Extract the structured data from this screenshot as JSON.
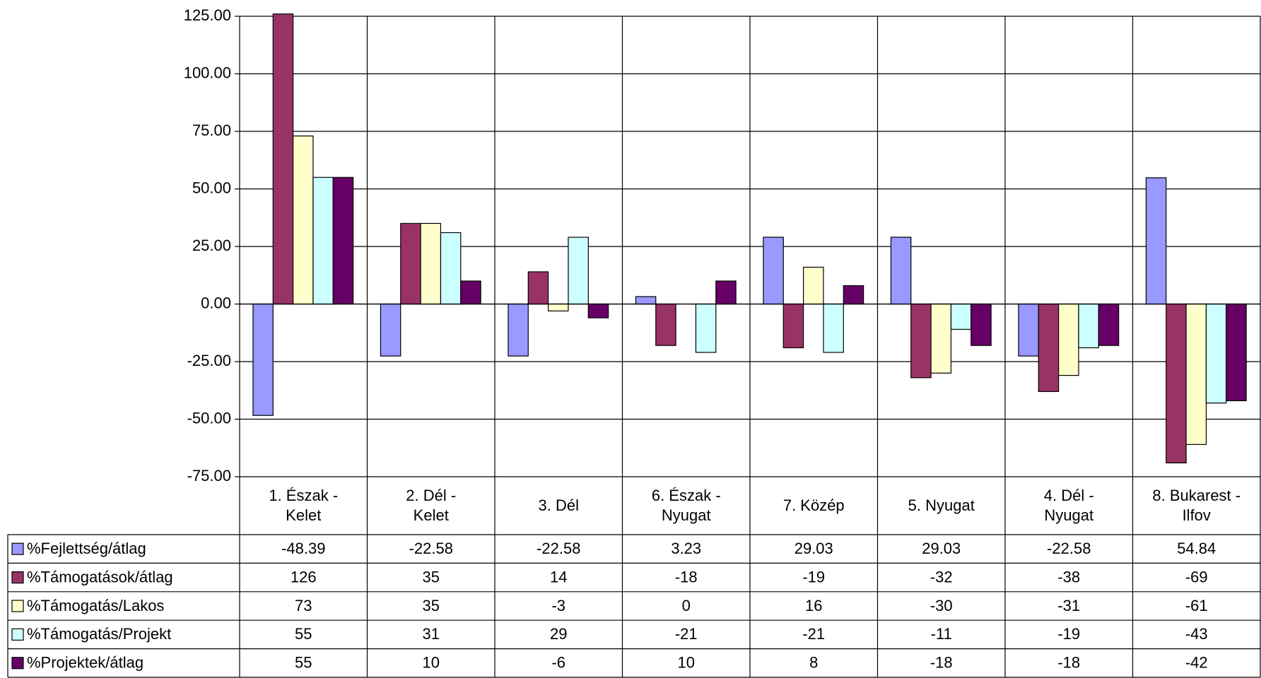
{
  "chart_data": {
    "type": "bar",
    "categories": [
      "1. Észak -\nKelet",
      "2. Dél -\nKelet",
      "3. Dél",
      "6. Észak -\nNyugat",
      "7. Közép",
      "5. Nyugat",
      "4. Dél -\nNyugat",
      "8. Bukarest -\nIlfov"
    ],
    "series": [
      {
        "name": "%Fejlettség/átlag",
        "color": "#9999ff",
        "values": [
          -48.39,
          -22.58,
          -22.58,
          3.23,
          29.03,
          29.03,
          -22.58,
          54.84
        ]
      },
      {
        "name": "%Támogatások/átlag",
        "color": "#993366",
        "values": [
          126,
          35,
          14,
          -18,
          -19,
          -32,
          -38,
          -69
        ]
      },
      {
        "name": "%Támogatás/Lakos",
        "color": "#ffffcc",
        "values": [
          73,
          35,
          -3,
          0,
          16,
          -30,
          -31,
          -61
        ]
      },
      {
        "name": "%Támogatás/Projekt",
        "color": "#ccffff",
        "values": [
          55,
          31,
          29,
          -21,
          -21,
          -11,
          -19,
          -43
        ]
      },
      {
        "name": "%Projektek/átlag",
        "color": "#660066",
        "values": [
          55,
          10,
          -6,
          10,
          8,
          -18,
          -18,
          -42
        ]
      }
    ],
    "ylim": [
      -75,
      125
    ],
    "yticks": [
      {
        "value": -75,
        "label": "-75.00"
      },
      {
        "value": -50,
        "label": "-50.00"
      },
      {
        "value": -25,
        "label": "-25.00"
      },
      {
        "value": 0,
        "label": "0.00"
      },
      {
        "value": 25,
        "label": "25.00"
      },
      {
        "value": 50,
        "label": "50.00"
      },
      {
        "value": 75,
        "label": "75.00"
      },
      {
        "value": 100,
        "label": "100.00"
      },
      {
        "value": 125,
        "label": "125.00"
      }
    ],
    "grid": true
  }
}
